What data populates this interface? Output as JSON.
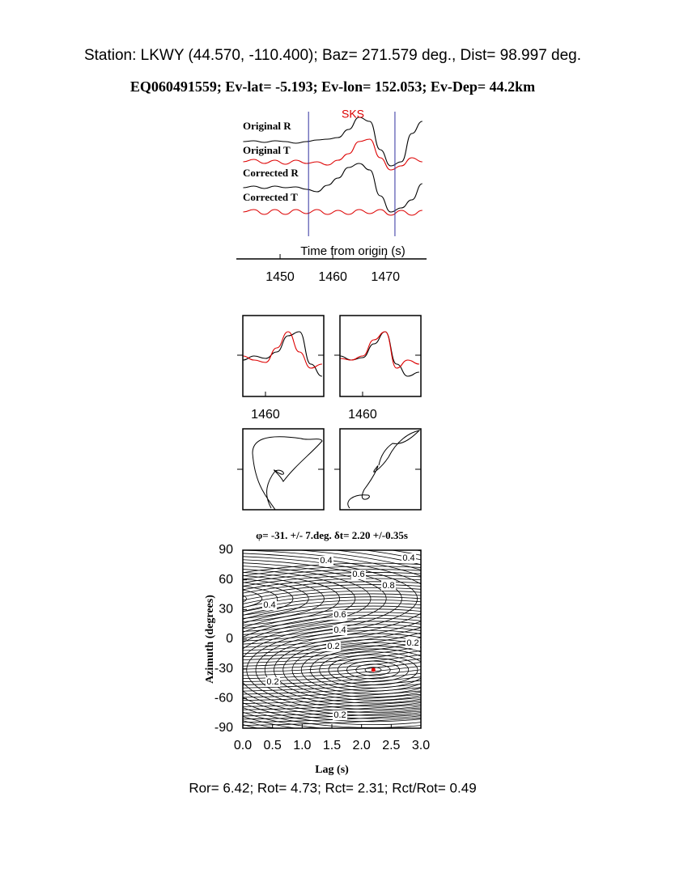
{
  "header": {
    "station": "Station: LKWY (44.570, -110.400); Baz=  271.579 deg., Dist=   98.997 deg.",
    "event": "EQ060491559; Ev-lat=  -5.193; Ev-lon= 152.053; Ev-Dep= 44.2km"
  },
  "footer": "Ror= 6.42; Rot= 4.73; Rct= 2.31; Rct/Rot= 0.49",
  "chart_data": [
    {
      "type": "line",
      "xlabel": "Time from origin (s)",
      "annotation": "SKS",
      "xlim": [
        1441.7,
        1477.8
      ],
      "xticks": [
        1450,
        1460,
        1470
      ],
      "window": [
        1455.4,
        1471.8
      ],
      "window_color": "#3030a0",
      "x": [
        1443,
        1445,
        1447,
        1449,
        1451,
        1453,
        1455,
        1457,
        1459,
        1461,
        1463,
        1465,
        1467,
        1469,
        1471,
        1473,
        1475,
        1477
      ],
      "series": [
        {
          "name": "Original R",
          "color": "#000000",
          "values": [
            0,
            1,
            -1,
            1,
            0,
            -2,
            0,
            2,
            3,
            5,
            15,
            30,
            25,
            -10,
            -30,
            -25,
            10,
            25
          ]
        },
        {
          "name": "Original T",
          "color": "#dd0000",
          "values": [
            0,
            3,
            -2,
            2,
            -3,
            2,
            -2,
            0,
            -4,
            2,
            10,
            25,
            28,
            5,
            -10,
            -5,
            5,
            0
          ]
        },
        {
          "name": "Corrected R",
          "color": "#000000",
          "values": [
            0,
            2,
            -1,
            2,
            0,
            1,
            -2,
            -5,
            3,
            12,
            25,
            30,
            22,
            -10,
            -30,
            -25,
            -15,
            5
          ]
        },
        {
          "name": "Corrected T",
          "color": "#dd0000",
          "values": [
            0,
            3,
            -3,
            3,
            -3,
            3,
            -2,
            3,
            -3,
            2,
            -3,
            3,
            -2,
            3,
            -4,
            2,
            -4,
            2
          ]
        }
      ]
    },
    {
      "type": "line",
      "xlim": [
        1456,
        1470.3
      ],
      "xticks": [
        1460
      ],
      "x": [
        1456,
        1458,
        1460,
        1462,
        1464,
        1466,
        1468,
        1470
      ],
      "series": [
        {
          "color": "#000000",
          "values": [
            -5,
            0,
            -3,
            5,
            25,
            30,
            -10,
            -25
          ]
        },
        {
          "color": "#dd0000",
          "values": [
            0,
            -5,
            -8,
            10,
            30,
            5,
            -15,
            -10
          ]
        }
      ]
    },
    {
      "type": "line",
      "xlim": [
        1456,
        1470.3
      ],
      "xticks": [
        1460
      ],
      "x": [
        1456,
        1458,
        1460,
        1462,
        1464,
        1466,
        1468,
        1470
      ],
      "series": [
        {
          "color": "#000000",
          "values": [
            0,
            -5,
            -2,
            15,
            30,
            -10,
            -25,
            -20
          ]
        },
        {
          "color": "#dd0000",
          "values": [
            -3,
            -5,
            0,
            20,
            30,
            -15,
            -5,
            -10
          ]
        }
      ]
    },
    {
      "type": "scatter",
      "title": "φ= -31. +/- 7.deg. δt= 2.20 +/-0.35s",
      "xlabel": "Lag (s)",
      "ylabel": "Azimuth (degrees)",
      "xlim": [
        0,
        3
      ],
      "ylim": [
        -90,
        90
      ],
      "xticks": [
        {
          "value": 0,
          "label": "0.0"
        },
        0.5,
        {
          "value": 1,
          "label": "1.0"
        },
        1.5,
        {
          "value": 2,
          "label": "2.0"
        },
        2.5,
        {
          "value": 3,
          "label": "3.0"
        }
      ],
      "yticks": [
        -90,
        -60,
        -30,
        0,
        30,
        60,
        90
      ],
      "series": [
        {
          "color": "#ee0000",
          "x": [
            2.2
          ],
          "y": [
            -31
          ]
        }
      ],
      "contour_labels": [
        0.4,
        0.4,
        0.6,
        0.8,
        0.4,
        0.6,
        0.4,
        0.2,
        0.2,
        0.2,
        0.2
      ]
    }
  ]
}
